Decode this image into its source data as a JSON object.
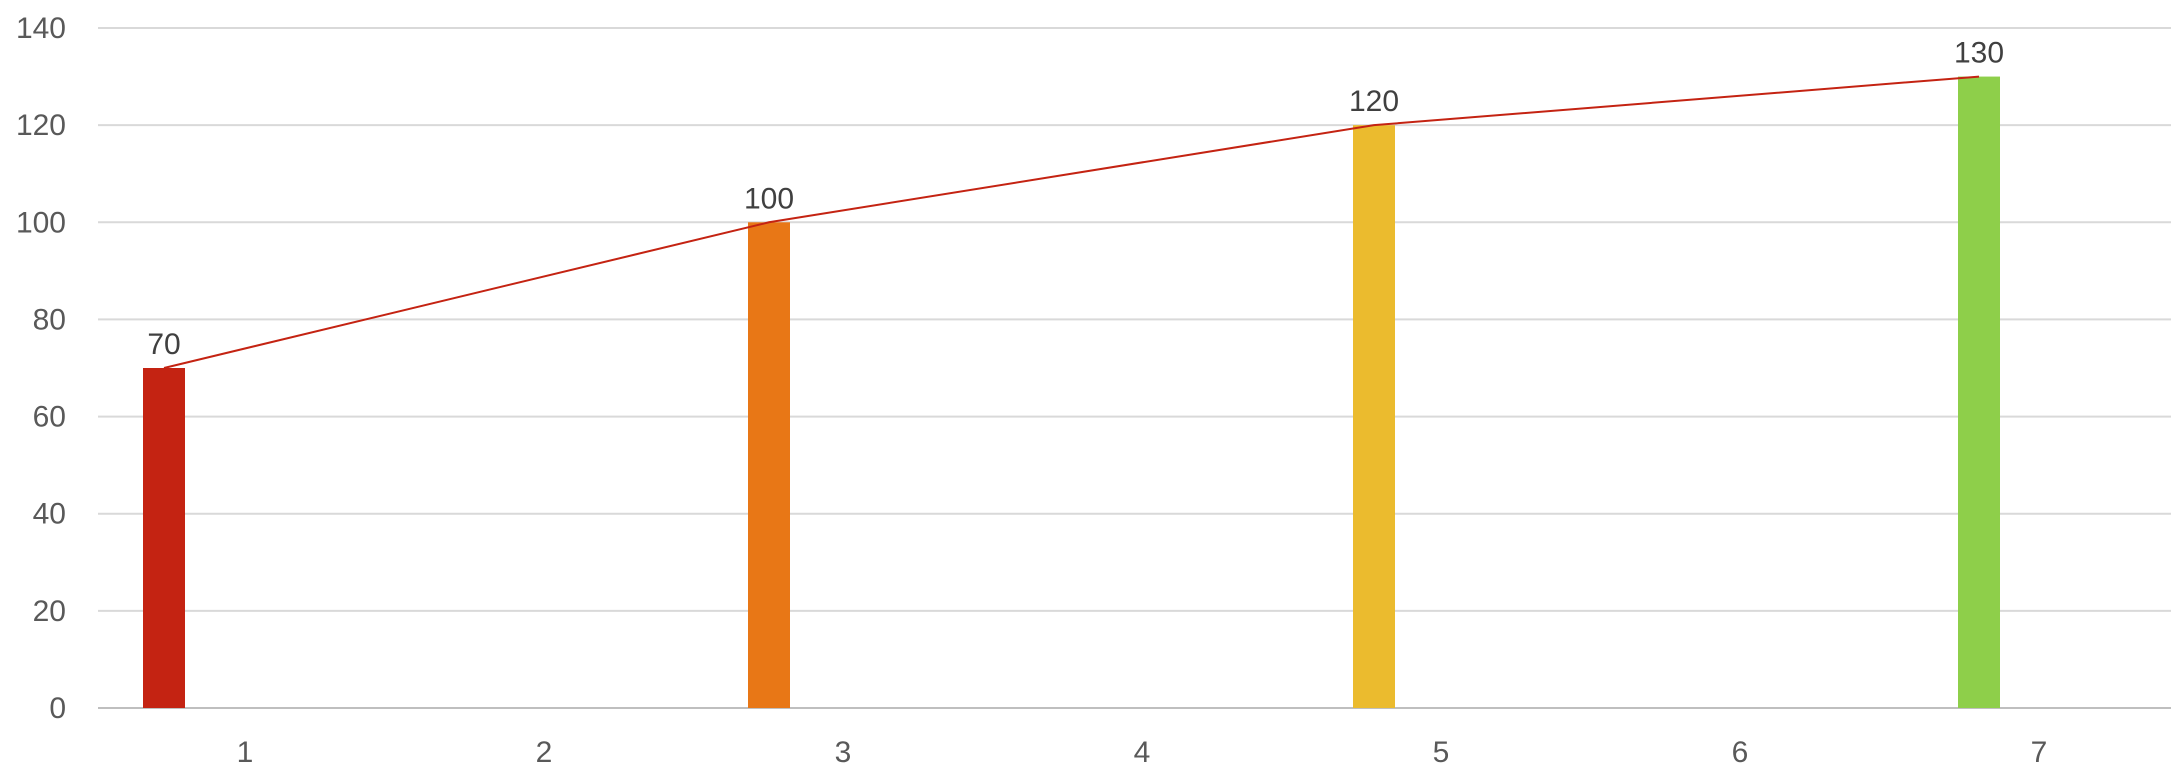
{
  "chart_data": {
    "type": "bar",
    "x_categories": [
      "1",
      "2",
      "3",
      "4",
      "5",
      "6",
      "7"
    ],
    "bars": [
      {
        "x": 1,
        "value": 70,
        "label": "70",
        "color": "#c42312"
      },
      {
        "x": 3,
        "value": 100,
        "label": "100",
        "color": "#e87716"
      },
      {
        "x": 5,
        "value": 120,
        "label": "120",
        "color": "#ebbb2e"
      },
      {
        "x": 7,
        "value": 130,
        "label": "130",
        "color": "#8ecf4a"
      }
    ],
    "trend_line": {
      "points": [
        [
          1,
          70
        ],
        [
          3,
          100
        ],
        [
          5,
          120
        ],
        [
          7,
          130
        ]
      ],
      "color": "#c42312"
    },
    "y_ticks": [
      0,
      20,
      40,
      60,
      80,
      100,
      120,
      140
    ],
    "ylim": [
      0,
      140
    ],
    "grid": true,
    "title": "",
    "xlabel": "",
    "ylabel": ""
  }
}
